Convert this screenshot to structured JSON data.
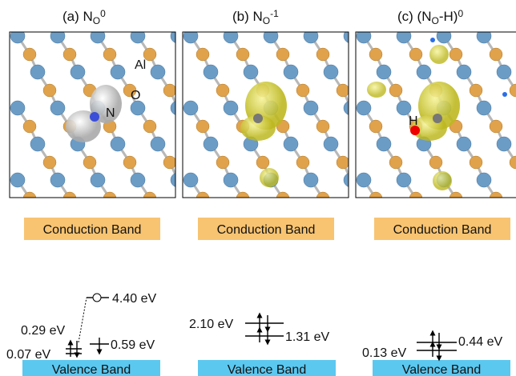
{
  "panels": [
    {
      "title": [
        {
          "text": "(a) N"
        },
        {
          "text": "O",
          "style": "sub"
        },
        {
          "text": "0",
          "style": "sup"
        }
      ],
      "atom_labels": [
        "Al",
        "O",
        "N"
      ],
      "conduction_band": "Conduction Band",
      "valence_band": "Valence Band",
      "levels": [
        "4.40 eV",
        "0.29 eV",
        "0.07 eV",
        "0.59 eV"
      ]
    },
    {
      "title": [
        {
          "text": "(b) N"
        },
        {
          "text": "O",
          "style": "sub"
        },
        {
          "text": "-1",
          "style": "sup"
        }
      ],
      "conduction_band": "Conduction Band",
      "valence_band": "Valence Band",
      "levels": [
        "2.10 eV",
        "1.31 eV"
      ]
    },
    {
      "title": [
        {
          "text": "(c) (N"
        },
        {
          "text": "O",
          "style": "sub"
        },
        {
          "text": "-H)"
        },
        {
          "text": "0",
          "style": "sup"
        }
      ],
      "atom_labels": [
        "H"
      ],
      "conduction_band": "Conduction Band",
      "valence_band": "Valence Band",
      "levels": [
        "0.13 eV",
        "0.44 eV"
      ]
    }
  ]
}
